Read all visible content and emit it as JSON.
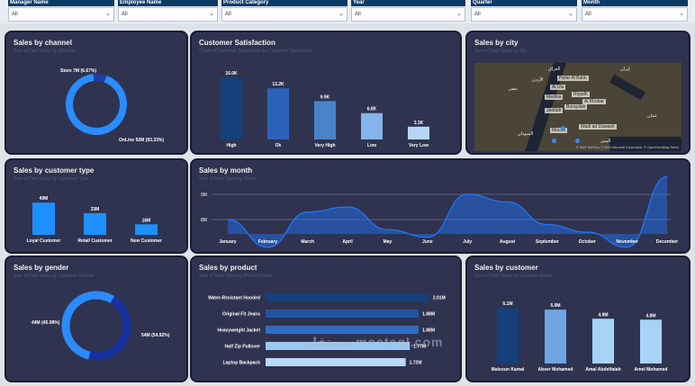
{
  "filters": [
    {
      "label": "Manager Name",
      "value": "All"
    },
    {
      "label": "Employee Name",
      "value": "All"
    },
    {
      "label": "Product Category",
      "value": "All"
    },
    {
      "label": "Year",
      "value": "All"
    },
    {
      "label": "Quarter",
      "value": "All"
    },
    {
      "label": "Month",
      "value": "All"
    }
  ],
  "cards": {
    "channel": {
      "title": "Sales by channel",
      "subtitle": "Sum of Total Sales by Channel"
    },
    "satisfaction": {
      "title": "Customer Satisfaction",
      "subtitle": "Count of Customer Satisfaction by Customer Satisfaction"
    },
    "city": {
      "title": "Sales by city",
      "subtitle": "Sum of Total Sales by City"
    },
    "customer_type": {
      "title": "Sales by customer type",
      "subtitle": "Sum of Total Sales by Customer Type"
    },
    "month": {
      "title": "Sales by month",
      "subtitle": "Sum of Total Sales by Month"
    },
    "gender": {
      "title": "Sales by gender",
      "subtitle": "Sum of Total Sales by Customer Gender"
    },
    "product": {
      "title": "Sales by product",
      "subtitle": "Sum of Total Sales by Product Name"
    },
    "customer": {
      "title": "Sales by customer",
      "subtitle": "Sum of Total Sales by Customer Name"
    }
  },
  "map": {
    "cities": [
      "Hafar Al Batin",
      "Medina",
      "Riyadh",
      "Jeddah",
      "Buraydah",
      "Al Khobar",
      "Al Ula",
      "Wadi ad Dawasir",
      "Mecca"
    ],
    "arabic_labels": [
      "العراق",
      "الأردن",
      "مصر",
      "إيران",
      "السودان",
      "عمان",
      "اليمن"
    ],
    "credit": "© 2024 TomTom, © 2024 Microsoft Corporation, © OpenStreetMap Terms"
  },
  "chart_data": [
    {
      "type": "pie",
      "title": "Sales by channel",
      "slices": [
        {
          "name": "Store",
          "label": "Store 7M (6.67%)",
          "value": 7
        },
        {
          "name": "OnLine",
          "label": "OnLine 92M (93.33%)",
          "value": 92
        }
      ],
      "colors": [
        "#1e3fa0",
        "#2a8cff"
      ]
    },
    {
      "type": "bar",
      "title": "Customer Satisfaction",
      "categories": [
        "High",
        "Ok",
        "Very High",
        "Low",
        "Very Low"
      ],
      "values": [
        16.0,
        13.2,
        9.9,
        6.8,
        3.3
      ],
      "labels": [
        "16.0K",
        "13.2K",
        "9.9K",
        "6.8K",
        "3.3K"
      ],
      "colors": [
        "#14407c",
        "#2b62b8",
        "#4a83cc",
        "#85b4e8",
        "#b7d6f7"
      ]
    },
    {
      "type": "bar",
      "title": "Sales by customer type",
      "categories": [
        "Loyal Customer",
        "Retail Customer",
        "New Customer"
      ],
      "values": [
        49,
        33,
        16
      ],
      "labels": [
        "49M",
        "33M",
        "16M"
      ],
      "colors": [
        "#1e90ff",
        "#1e90ff",
        "#1e90ff"
      ]
    },
    {
      "type": "area",
      "title": "Sales by month",
      "categories": [
        "January",
        "February",
        "March",
        "April",
        "May",
        "June",
        "July",
        "August",
        "September",
        "October",
        "November",
        "December"
      ],
      "values": [
        8.0,
        6.9,
        8.3,
        8.5,
        7.6,
        7.3,
        9.0,
        8.7,
        7.8,
        7.5,
        6.9,
        9.7
      ],
      "ytick_labels": [
        "8M",
        "9M"
      ],
      "color": "#1f78ff"
    },
    {
      "type": "pie",
      "title": "Sales by gender",
      "slices": [
        {
          "name": "Female",
          "label": "44M (45.08%)",
          "value": 44
        },
        {
          "name": "Male",
          "label": "54M (54.92%)",
          "value": 54
        }
      ],
      "colors": [
        "#1632a0",
        "#2a8cff"
      ]
    },
    {
      "type": "bar",
      "orientation": "horizontal",
      "title": "Sales by product",
      "categories": [
        "Water-Resistant Hooded",
        "Original Fit Jeans",
        "Heavyweight Jacket",
        "Half Zip Pullover",
        "Laptop Backpack"
      ],
      "values": [
        2.01,
        1.88,
        1.88,
        1.77,
        1.72
      ],
      "labels": [
        "2.01M",
        "1.88M",
        "1.88M",
        "1.77M",
        "1.72M"
      ],
      "colors": [
        "#14407c",
        "#1f55a0",
        "#2e6cc0",
        "#9cc8f4",
        "#b8daf9"
      ]
    },
    {
      "type": "bar",
      "title": "Sales by customer",
      "categories": [
        "Maisoun Kamal",
        "Abeer Mohamed",
        "Amal Abdelfatah",
        "Amel Mohamed"
      ],
      "values": [
        6.1,
        5.9,
        4.9,
        4.8
      ],
      "labels": [
        "6.1M",
        "5.9M",
        "4.9M",
        "4.8M"
      ],
      "colors": [
        "#14407c",
        "#6fa5df",
        "#a9d2f7",
        "#a9d2f7"
      ]
    }
  ],
  "watermark": "مستقل mostaql.com"
}
